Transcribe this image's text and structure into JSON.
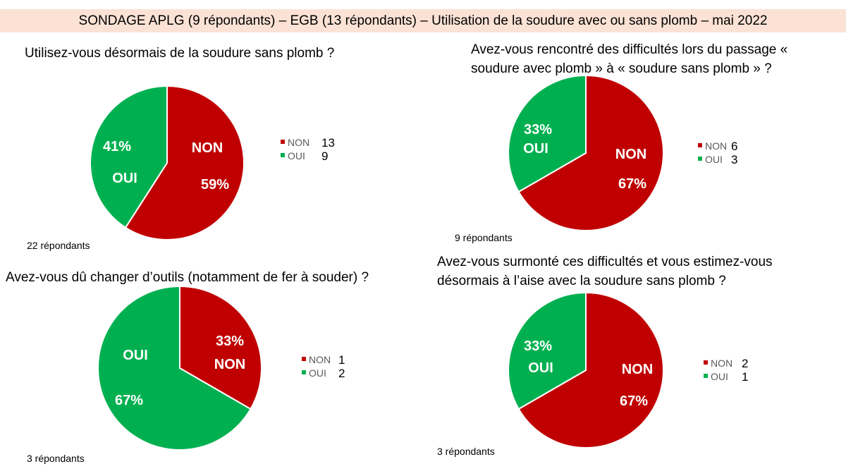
{
  "header": {
    "title": "SONDAGE APLG (9 répondants) – EGB (13 répondants) – Utilisation de la soudure avec ou sans plomb – mai 2022"
  },
  "colors": {
    "NON": "#c00000",
    "OUI": "#00b050"
  },
  "chart_data": [
    {
      "type": "pie",
      "title": "Utilisez-vous désormais de la soudure sans plomb ?",
      "title_lines": [
        "Utilisez-vous désormais de la soudure sans plomb ?"
      ],
      "categories": [
        "NON",
        "OUI"
      ],
      "values": [
        13,
        9
      ],
      "percent_labels": [
        "59%",
        "41%"
      ],
      "note": "22 répondants",
      "legend": "right"
    },
    {
      "type": "pie",
      "title_lines": [
        "Avez-vous rencontré des difficultés lors du passage «",
        "soudure avec plomb » à  « soudure sans plomb » ?"
      ],
      "categories": [
        "NON",
        "OUI"
      ],
      "values": [
        6,
        3
      ],
      "percent_labels": [
        "67%",
        "33%"
      ],
      "note": "9 répondants",
      "legend": "right"
    },
    {
      "type": "pie",
      "title_lines": [
        "Avez-vous dû changer d’outils (notamment de fer à souder) ?"
      ],
      "categories": [
        "NON",
        "OUI"
      ],
      "values": [
        1,
        2
      ],
      "percent_labels": [
        "33%",
        "67%"
      ],
      "note": "3 répondants",
      "legend": "right"
    },
    {
      "type": "pie",
      "title_lines": [
        "Avez-vous surmonté ces difficultés et vous estimez-vous",
        "désormais à l’aise avec la soudure sans plomb ?"
      ],
      "categories": [
        "NON",
        "OUI"
      ],
      "values": [
        2,
        1
      ],
      "percent_labels": [
        "67%",
        "33%"
      ],
      "note": "3 répondants",
      "legend": "right"
    }
  ]
}
